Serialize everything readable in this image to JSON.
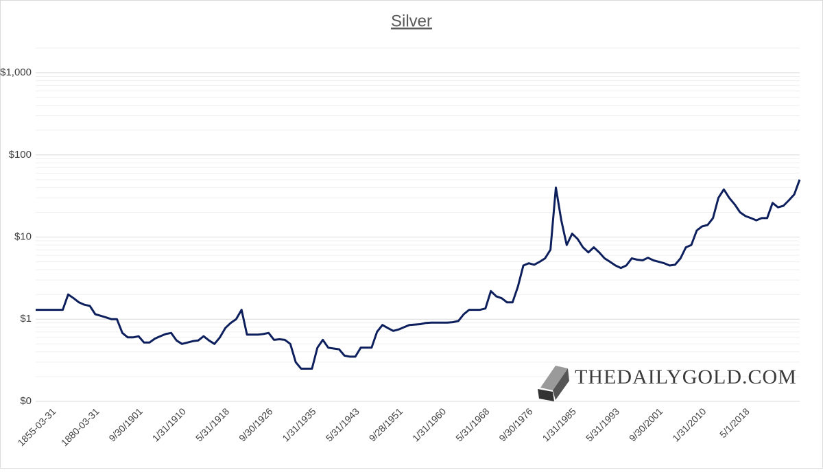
{
  "chart_data": {
    "type": "line",
    "title": "Silver",
    "watermark": "THEDAILYGOLD.COM",
    "log_scale": true,
    "grid": true,
    "minor_grid": true,
    "ylim": [
      0.1,
      2000
    ],
    "yticks": [
      {
        "value": 0.1,
        "label": "$0"
      },
      {
        "value": 1,
        "label": "$1"
      },
      {
        "value": 10,
        "label": "$10"
      },
      {
        "value": 100,
        "label": "$100"
      },
      {
        "value": 1000,
        "label": "$1,000"
      }
    ],
    "categories": [
      null,
      null,
      null,
      "1855-03-31",
      null,
      null,
      null,
      null,
      null,
      null,
      null,
      "1880-03-31",
      null,
      null,
      null,
      null,
      null,
      null,
      null,
      "9/30/1901",
      null,
      null,
      null,
      null,
      null,
      null,
      null,
      "1/31/1910",
      null,
      null,
      null,
      null,
      null,
      null,
      null,
      "5/31/1918",
      null,
      null,
      null,
      null,
      null,
      null,
      null,
      "9/30/1926",
      null,
      null,
      null,
      null,
      null,
      null,
      null,
      "1/31/1935",
      null,
      null,
      null,
      null,
      null,
      null,
      null,
      "5/31/1943",
      null,
      null,
      null,
      null,
      null,
      null,
      null,
      "9/28/1951",
      null,
      null,
      null,
      null,
      null,
      null,
      null,
      "1/31/1960",
      null,
      null,
      null,
      null,
      null,
      null,
      null,
      "5/31/1968",
      null,
      null,
      null,
      null,
      null,
      null,
      null,
      "9/30/1976",
      null,
      null,
      null,
      null,
      null,
      null,
      null,
      "1/31/1985",
      null,
      null,
      null,
      null,
      null,
      null,
      null,
      "5/31/1993",
      null,
      null,
      null,
      null,
      null,
      null,
      null,
      "9/30/2001",
      null,
      null,
      null,
      null,
      null,
      null,
      null,
      "1/31/2010",
      null,
      null,
      null,
      null,
      null,
      null,
      null,
      "5/1/2018",
      null,
      null,
      null,
      null,
      null,
      null,
      null,
      null,
      null,
      null
    ],
    "series": [
      {
        "name": "Silver",
        "color": "#0d1f5c",
        "values": [
          1.3,
          1.3,
          1.3,
          1.3,
          1.3,
          1.3,
          2.0,
          1.8,
          1.6,
          1.5,
          1.45,
          1.15,
          1.1,
          1.05,
          1.0,
          1.0,
          0.68,
          0.6,
          0.6,
          0.62,
          0.52,
          0.52,
          0.58,
          0.62,
          0.66,
          0.68,
          0.55,
          0.5,
          0.52,
          0.54,
          0.55,
          0.62,
          0.55,
          0.5,
          0.6,
          0.78,
          0.9,
          1.0,
          1.3,
          0.65,
          0.65,
          0.65,
          0.66,
          0.68,
          0.56,
          0.57,
          0.56,
          0.5,
          0.3,
          0.25,
          0.25,
          0.25,
          0.45,
          0.56,
          0.45,
          0.44,
          0.43,
          0.36,
          0.35,
          0.35,
          0.45,
          0.45,
          0.45,
          0.7,
          0.85,
          0.78,
          0.72,
          0.75,
          0.8,
          0.85,
          0.86,
          0.87,
          0.9,
          0.91,
          0.91,
          0.91,
          0.91,
          0.92,
          0.95,
          1.15,
          1.3,
          1.3,
          1.3,
          1.35,
          2.2,
          1.9,
          1.8,
          1.6,
          1.6,
          2.5,
          4.5,
          4.8,
          4.6,
          5.0,
          5.5,
          7.0,
          40,
          16,
          8,
          11,
          9.5,
          7.5,
          6.5,
          7.5,
          6.5,
          5.5,
          5.0,
          4.5,
          4.2,
          4.5,
          5.5,
          5.3,
          5.2,
          5.6,
          5.2,
          5.0,
          4.8,
          4.5,
          4.6,
          5.5,
          7.5,
          8,
          12,
          13.5,
          14,
          17,
          30,
          38,
          30,
          25,
          20,
          18,
          17,
          16,
          17,
          17,
          26,
          23,
          24,
          28,
          33,
          50
        ]
      }
    ]
  }
}
